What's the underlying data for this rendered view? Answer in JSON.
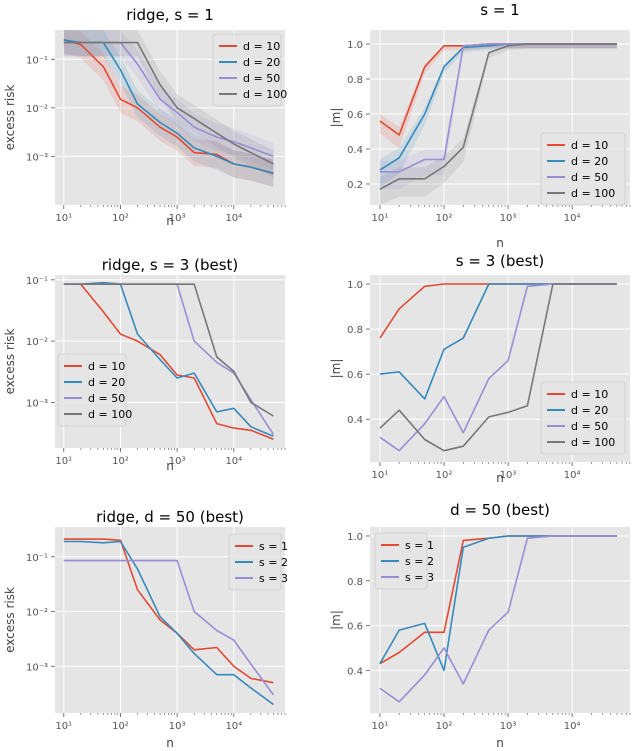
{
  "colors": {
    "red": "#e24a33",
    "blue": "#348abd",
    "purple": "#988ed5",
    "gray": "#777777",
    "plot_bg": "#e5e5e5",
    "grid": "#ffffff"
  },
  "chart_data": [
    {
      "type": "line",
      "title": "ridge, s = 1",
      "xlabel": "n",
      "ylabel": "excess risk",
      "xscale": "log",
      "yscale": "log",
      "xlim": [
        7,
        80000
      ],
      "ylim": [
        0.0001,
        0.4
      ],
      "x_ticks": [
        10,
        100,
        1000,
        10000
      ],
      "x_tick_labels": [
        "10¹",
        "10²",
        "10³",
        "10⁴"
      ],
      "y_ticks": [
        0.001,
        0.01,
        0.1
      ],
      "y_tick_labels": [
        "10⁻³",
        "10⁻²",
        "10⁻¹"
      ],
      "grid": true,
      "legend": "top-right",
      "x": [
        10,
        20,
        50,
        100,
        200,
        500,
        1000,
        2000,
        5000,
        10000,
        20000,
        50000
      ],
      "series": [
        {
          "name": "d = 10",
          "color": "#e24a33",
          "band": true,
          "values": [
            0.25,
            0.2,
            0.07,
            0.015,
            0.01,
            0.004,
            0.0025,
            0.0012,
            0.0011,
            0.0007,
            0.0006,
            0.00045
          ]
        },
        {
          "name": "d = 20",
          "color": "#348abd",
          "band": true,
          "values": [
            0.25,
            0.22,
            0.22,
            0.06,
            0.012,
            0.005,
            0.003,
            0.0015,
            0.001,
            0.0007,
            0.0006,
            0.00045
          ]
        },
        {
          "name": "d = 50",
          "color": "#988ed5",
          "band": true,
          "values": [
            0.22,
            0.22,
            0.22,
            0.22,
            0.08,
            0.015,
            0.008,
            0.004,
            0.0025,
            0.002,
            0.0015,
            0.001
          ]
        },
        {
          "name": "d = 100",
          "color": "#777777",
          "band": true,
          "values": [
            0.22,
            0.22,
            0.22,
            0.22,
            0.22,
            0.03,
            0.01,
            0.006,
            0.003,
            0.0018,
            0.0012,
            0.0007
          ]
        }
      ]
    },
    {
      "type": "line",
      "title": "s = 1",
      "xlabel": "n",
      "ylabel": "|m|",
      "xscale": "log",
      "yscale": "linear",
      "xlim": [
        7,
        80000
      ],
      "ylim": [
        0.08,
        1.08
      ],
      "x_ticks": [
        10,
        100,
        1000,
        10000
      ],
      "x_tick_labels": [
        "10¹",
        "10²",
        "10³",
        "10⁴"
      ],
      "y_ticks": [
        0.2,
        0.4,
        0.6,
        0.8,
        1.0
      ],
      "y_tick_labels": [
        "0.2",
        "0.4",
        "0.6",
        "0.8",
        "1.0"
      ],
      "grid": true,
      "legend": "lower-right",
      "x": [
        10,
        20,
        50,
        100,
        200,
        500,
        1000,
        2000,
        5000,
        10000,
        20000,
        50000
      ],
      "series": [
        {
          "name": "d = 10",
          "color": "#e24a33",
          "band": true,
          "values": [
            0.56,
            0.48,
            0.87,
            0.99,
            0.99,
            1.0,
            1.0,
            1.0,
            1.0,
            1.0,
            1.0,
            1.0
          ]
        },
        {
          "name": "d = 20",
          "color": "#348abd",
          "band": true,
          "values": [
            0.28,
            0.35,
            0.6,
            0.87,
            0.98,
            0.99,
            1.0,
            1.0,
            1.0,
            1.0,
            1.0,
            1.0
          ]
        },
        {
          "name": "d = 50",
          "color": "#988ed5",
          "band": true,
          "values": [
            0.27,
            0.27,
            0.34,
            0.34,
            0.99,
            1.0,
            1.0,
            1.0,
            1.0,
            1.0,
            1.0,
            1.0
          ]
        },
        {
          "name": "d = 100",
          "color": "#777777",
          "band": true,
          "values": [
            0.17,
            0.23,
            0.23,
            0.3,
            0.41,
            0.95,
            0.99,
            1.0,
            1.0,
            1.0,
            1.0,
            1.0
          ]
        }
      ]
    },
    {
      "type": "line",
      "title": "ridge, s = 3 (best)",
      "xlabel": "n",
      "ylabel": "excess risk",
      "xscale": "log",
      "yscale": "log",
      "xlim": [
        7,
        80000
      ],
      "ylim": [
        0.00018,
        0.12
      ],
      "x_ticks": [
        10,
        100,
        1000,
        10000
      ],
      "x_tick_labels": [
        "10¹",
        "10²",
        "10³",
        "10⁴"
      ],
      "y_ticks": [
        0.001,
        0.01,
        0.1
      ],
      "y_tick_labels": [
        "10⁻³",
        "10⁻²",
        "10⁻¹"
      ],
      "grid": true,
      "legend": "lower-left",
      "x": [
        10,
        20,
        50,
        100,
        200,
        500,
        1000,
        2000,
        5000,
        10000,
        20000,
        50000
      ],
      "series": [
        {
          "name": "d = 10",
          "color": "#e24a33",
          "values": [
            0.085,
            0.085,
            0.03,
            0.013,
            0.01,
            0.006,
            0.0028,
            0.0025,
            0.00045,
            0.00038,
            0.00035,
            0.00025
          ]
        },
        {
          "name": "d = 20",
          "color": "#348abd",
          "values": [
            0.085,
            0.085,
            0.09,
            0.085,
            0.013,
            0.005,
            0.0025,
            0.003,
            0.0007,
            0.0008,
            0.0004,
            0.00028
          ]
        },
        {
          "name": "d = 50",
          "color": "#988ed5",
          "values": [
            0.085,
            0.085,
            0.085,
            0.085,
            0.085,
            0.085,
            0.085,
            0.01,
            0.0045,
            0.003,
            0.0011,
            0.0003
          ]
        },
        {
          "name": "d = 100",
          "color": "#777777",
          "values": [
            0.085,
            0.085,
            0.085,
            0.085,
            0.085,
            0.085,
            0.085,
            0.085,
            0.0055,
            0.0032,
            0.001,
            0.0006
          ]
        }
      ]
    },
    {
      "type": "line",
      "title": "s = 3 (best)",
      "xlabel": "n",
      "ylabel": "|m|",
      "xscale": "log",
      "yscale": "linear",
      "xlim": [
        7,
        80000
      ],
      "ylim": [
        0.21,
        1.04
      ],
      "x_ticks": [
        10,
        100,
        1000,
        10000
      ],
      "x_tick_labels": [
        "10¹",
        "10²",
        "10³",
        "10⁴"
      ],
      "y_ticks": [
        0.4,
        0.6,
        0.8,
        1.0
      ],
      "y_tick_labels": [
        "0.4",
        "0.6",
        "0.8",
        "1.0"
      ],
      "grid": true,
      "legend": "lower-right",
      "x": [
        10,
        20,
        50,
        100,
        200,
        500,
        1000,
        2000,
        5000,
        10000,
        20000,
        50000
      ],
      "series": [
        {
          "name": "d = 10",
          "color": "#e24a33",
          "values": [
            0.76,
            0.89,
            0.99,
            1.0,
            1.0,
            1.0,
            1.0,
            1.0,
            1.0,
            1.0,
            1.0,
            1.0
          ]
        },
        {
          "name": "d = 20",
          "color": "#348abd",
          "values": [
            0.6,
            0.61,
            0.49,
            0.71,
            0.76,
            1.0,
            1.0,
            1.0,
            1.0,
            1.0,
            1.0,
            1.0
          ]
        },
        {
          "name": "d = 50",
          "color": "#988ed5",
          "values": [
            0.32,
            0.26,
            0.38,
            0.5,
            0.34,
            0.58,
            0.66,
            0.99,
            1.0,
            1.0,
            1.0,
            1.0
          ]
        },
        {
          "name": "d = 100",
          "color": "#777777",
          "values": [
            0.36,
            0.44,
            0.31,
            0.26,
            0.28,
            0.41,
            0.43,
            0.46,
            1.0,
            1.0,
            1.0,
            1.0
          ]
        }
      ]
    },
    {
      "type": "line",
      "title": "ridge, d = 50 (best)",
      "xlabel": "n",
      "ylabel": "excess risk",
      "xscale": "log",
      "yscale": "log",
      "xlim": [
        7,
        80000
      ],
      "ylim": [
        0.00014,
        0.35
      ],
      "x_ticks": [
        10,
        100,
        1000,
        10000
      ],
      "x_tick_labels": [
        "10¹",
        "10²",
        "10³",
        "10⁴"
      ],
      "y_ticks": [
        0.001,
        0.01,
        0.1
      ],
      "y_tick_labels": [
        "10⁻³",
        "10⁻²",
        "10⁻¹"
      ],
      "grid": true,
      "legend": "top-right",
      "x": [
        10,
        20,
        50,
        100,
        200,
        500,
        1000,
        2000,
        5000,
        10000,
        20000,
        50000
      ],
      "series": [
        {
          "name": "s = 1",
          "color": "#e24a33",
          "values": [
            0.21,
            0.21,
            0.21,
            0.2,
            0.025,
            0.007,
            0.004,
            0.002,
            0.0022,
            0.001,
            0.0006,
            0.0005
          ]
        },
        {
          "name": "s = 2",
          "color": "#348abd",
          "values": [
            0.19,
            0.19,
            0.18,
            0.19,
            0.06,
            0.008,
            0.004,
            0.0017,
            0.0007,
            0.0007,
            0.0004,
            0.0002
          ]
        },
        {
          "name": "s = 3",
          "color": "#988ed5",
          "values": [
            0.085,
            0.085,
            0.085,
            0.085,
            0.085,
            0.085,
            0.085,
            0.01,
            0.0045,
            0.003,
            0.0011,
            0.0003
          ]
        }
      ]
    },
    {
      "type": "line",
      "title": "d = 50 (best)",
      "xlabel": "n",
      "ylabel": "|m|",
      "xscale": "log",
      "yscale": "linear",
      "xlim": [
        7,
        80000
      ],
      "ylim": [
        0.21,
        1.04
      ],
      "x_ticks": [
        10,
        100,
        1000,
        10000
      ],
      "x_tick_labels": [
        "10¹",
        "10²",
        "10³",
        "10⁴"
      ],
      "y_ticks": [
        0.4,
        0.6,
        0.8,
        1.0
      ],
      "y_tick_labels": [
        "0.4",
        "0.6",
        "0.8",
        "1.0"
      ],
      "grid": true,
      "legend": "top-left",
      "x": [
        10,
        20,
        50,
        100,
        200,
        500,
        1000,
        2000,
        5000,
        10000,
        20000,
        50000
      ],
      "series": [
        {
          "name": "s = 1",
          "color": "#e24a33",
          "values": [
            0.43,
            0.48,
            0.57,
            0.57,
            0.98,
            0.99,
            1.0,
            1.0,
            1.0,
            1.0,
            1.0,
            1.0
          ]
        },
        {
          "name": "s = 2",
          "color": "#348abd",
          "values": [
            0.43,
            0.58,
            0.61,
            0.4,
            0.95,
            0.99,
            1.0,
            1.0,
            1.0,
            1.0,
            1.0,
            1.0
          ]
        },
        {
          "name": "s = 3",
          "color": "#988ed5",
          "values": [
            0.32,
            0.26,
            0.38,
            0.5,
            0.34,
            0.58,
            0.66,
            0.99,
            1.0,
            1.0,
            1.0,
            1.0
          ]
        }
      ]
    }
  ]
}
